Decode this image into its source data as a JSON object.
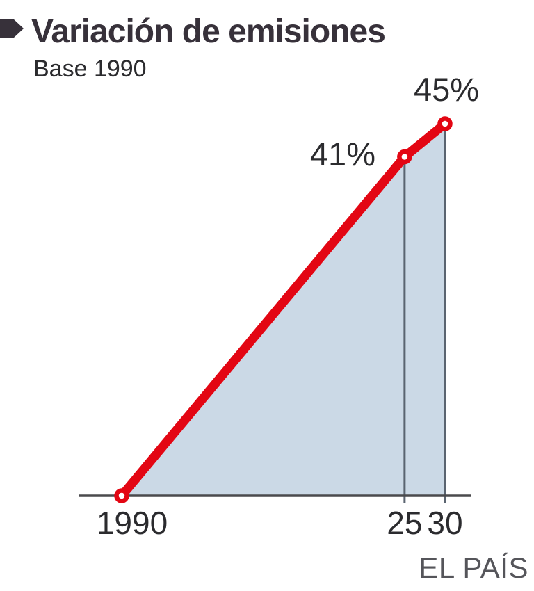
{
  "header": {
    "title": "Variación de emisiones",
    "subtitle": "Base 1990"
  },
  "credit": "EL PAÍS",
  "colors": {
    "accent_red": "#e30613",
    "area_fill": "#cbd9e6",
    "axis_gray": "#4a4a4d",
    "guide_gray": "#5a6470",
    "title_dark": "#37313a",
    "text_dark": "#2b2b2e",
    "credit_gray": "#55555a"
  },
  "chart_data": {
    "type": "area",
    "title": "Variación de emisiones",
    "subtitle": "Base 1990",
    "x": [
      1990,
      2025,
      2030
    ],
    "values": [
      0,
      41,
      45
    ],
    "x_tick_labels": [
      "1990",
      "25",
      "30"
    ],
    "point_labels": [
      "",
      "41%",
      "45%"
    ],
    "unit": "%",
    "xlim": [
      1990,
      2030
    ],
    "ylim": [
      0,
      45
    ],
    "grid": "off",
    "legend": "none",
    "source": "EL PAÍS"
  }
}
